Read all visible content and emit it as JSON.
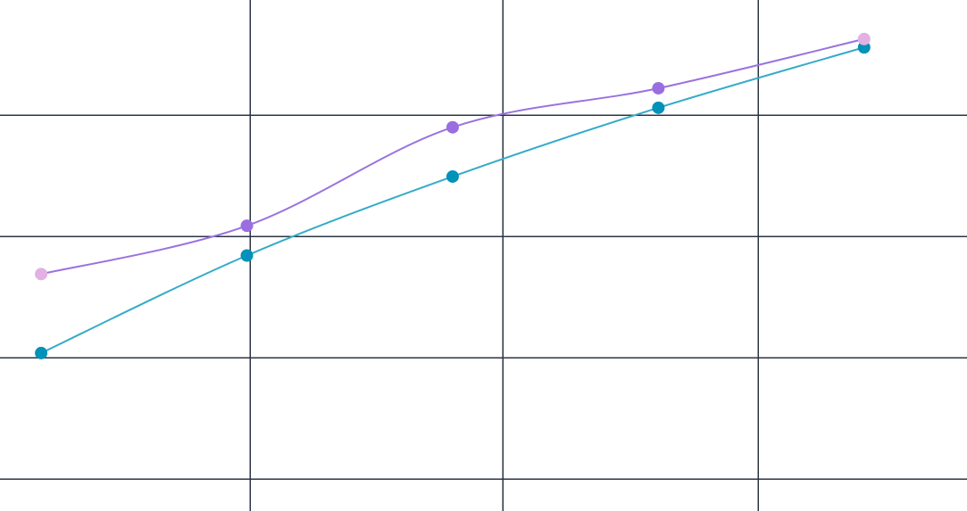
{
  "chart_data": {
    "type": "line",
    "title": "",
    "xlabel": "",
    "ylabel": "",
    "x": [
      0,
      1,
      2,
      3,
      4
    ],
    "xlim": [
      -0.2,
      4.5
    ],
    "ylim": [
      -1.3,
      4.2
    ],
    "grid": true,
    "legend": "none",
    "series": [
      {
        "color": "#0291b8",
        "line_color": "#35abc9",
        "values": [
          0.4,
          1.45,
          2.3,
          3.04,
          3.69
        ],
        "point_colors": [
          "#0291b8",
          "#0291b8",
          "#0291b8",
          "#0291b8",
          "#0291b8"
        ]
      },
      {
        "color": "#9a6ee0",
        "line_color": "#9a72de",
        "values": [
          1.25,
          1.77,
          2.83,
          3.25,
          3.78
        ],
        "point_colors": [
          "#e2b0e2",
          "#9a6ee0",
          "#9a6ee0",
          "#9a6ee0",
          "#e2b0e2"
        ]
      }
    ]
  }
}
